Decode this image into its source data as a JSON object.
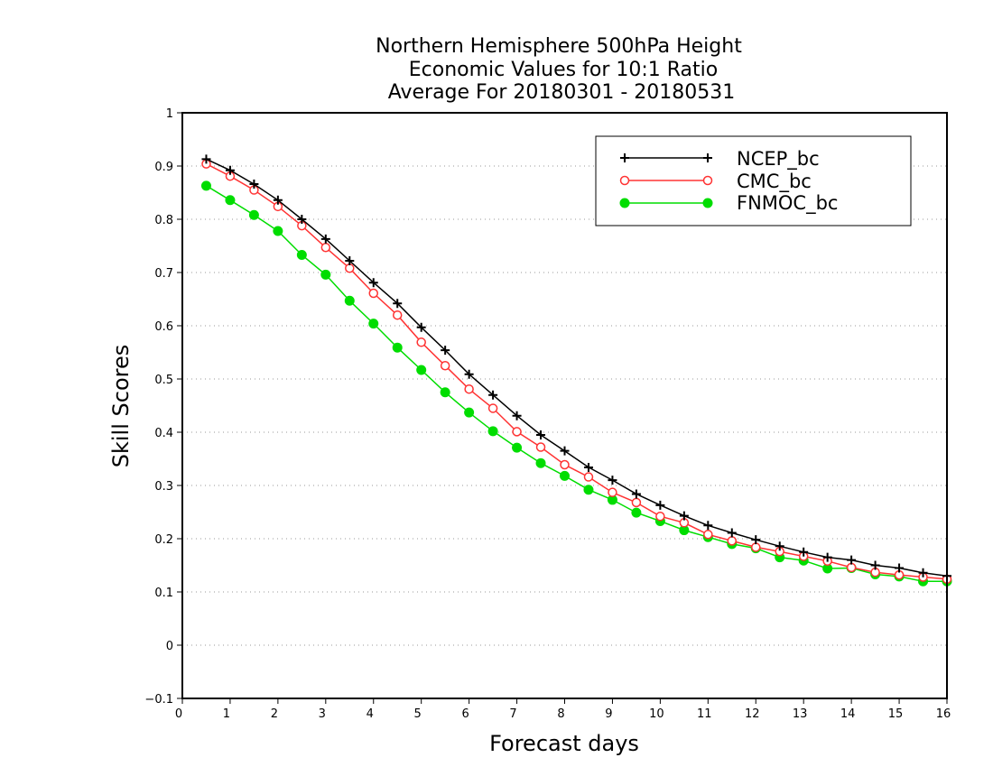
{
  "chart_data": {
    "type": "line",
    "title_lines": [
      "Northern Hemisphere 500hPa Height",
      "Economic Values for 10:1 Ratio",
      "Average For 20180301 - 20180531"
    ],
    "xlabel": "Forecast days",
    "ylabel": "Skill Scores",
    "xlim": [
      0,
      16
    ],
    "ylim": [
      -0.1,
      1
    ],
    "x_ticks": [
      0,
      1,
      2,
      3,
      4,
      5,
      6,
      7,
      8,
      9,
      10,
      11,
      12,
      13,
      14,
      15,
      16
    ],
    "y_ticks": [
      -0.1,
      0,
      0.1,
      0.2,
      0.3,
      0.4,
      0.5,
      0.6,
      0.7,
      0.8,
      0.9,
      1
    ],
    "y_tick_labels": [
      "−0.1",
      "0",
      "0.1",
      "0.2",
      "0.3",
      "0.4",
      "0.5",
      "0.6",
      "0.7",
      "0.8",
      "0.9",
      "1"
    ],
    "grid": "horizontal dotted",
    "legend_position": "top-right",
    "x": [
      0.5,
      1,
      1.5,
      2,
      2.5,
      3,
      3.5,
      4,
      4.5,
      5,
      5.5,
      6,
      6.5,
      7,
      7.5,
      8,
      8.5,
      9,
      9.5,
      10,
      10.5,
      11,
      11.5,
      12,
      12.5,
      13,
      13.5,
      14,
      14.5,
      15,
      15.5,
      16
    ],
    "series": [
      {
        "name": "NCEP_bc",
        "color": "#000000",
        "marker": "plus",
        "values": [
          0.913,
          0.892,
          0.866,
          0.836,
          0.8,
          0.763,
          0.722,
          0.681,
          0.642,
          0.597,
          0.554,
          0.509,
          0.47,
          0.431,
          0.395,
          0.365,
          0.334,
          0.31,
          0.284,
          0.263,
          0.243,
          0.225,
          0.211,
          0.198,
          0.186,
          0.175,
          0.165,
          0.16,
          0.15,
          0.145,
          0.136,
          0.13
        ]
      },
      {
        "name": "CMC_bc",
        "color": "#ff3333",
        "marker": "open-circle",
        "values": [
          0.904,
          0.881,
          0.855,
          0.824,
          0.788,
          0.747,
          0.708,
          0.661,
          0.62,
          0.569,
          0.525,
          0.481,
          0.445,
          0.401,
          0.372,
          0.339,
          0.316,
          0.287,
          0.268,
          0.242,
          0.23,
          0.208,
          0.196,
          0.184,
          0.176,
          0.167,
          0.158,
          0.146,
          0.137,
          0.132,
          0.128,
          0.124
        ]
      },
      {
        "name": "FNMOC_bc",
        "color": "#00dd00",
        "marker": "filled-circle",
        "values": [
          0.863,
          0.836,
          0.808,
          0.778,
          0.733,
          0.696,
          0.647,
          0.604,
          0.559,
          0.517,
          0.475,
          0.437,
          0.402,
          0.371,
          0.342,
          0.318,
          0.292,
          0.273,
          0.249,
          0.233,
          0.216,
          0.203,
          0.19,
          0.182,
          0.165,
          0.159,
          0.144,
          0.145,
          0.133,
          0.129,
          0.12,
          0.12
        ]
      }
    ]
  }
}
